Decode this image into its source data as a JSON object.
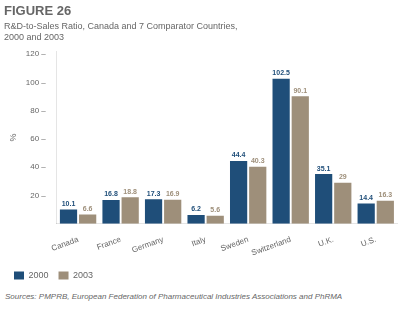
{
  "chart_data": {
    "type": "bar",
    "title": "FIGURE 26",
    "subtitle": "R&D-to-Sales Ratio, Canada and 7 Comparator Countries,\n2000 and 2003",
    "ylabel": "%",
    "annotations": [
      "Sources: PMPRB, European Federation of Pharmaceutical Industries Associations and PhRMA"
    ],
    "categories": [
      "Canada",
      "France",
      "Germany",
      "Italy",
      "Sweden",
      "Switzerland",
      "U.K.",
      "U.S."
    ],
    "series": [
      {
        "name": "2000",
        "color": "#1f4e79",
        "values": [
          10.1,
          16.8,
          17.3,
          6.2,
          44.4,
          102.5,
          35.1,
          14.4
        ]
      },
      {
        "name": "2003",
        "color": "#9e8f7a",
        "values": [
          6.6,
          18.8,
          16.9,
          5.6,
          40.3,
          90.1,
          29.0,
          16.3
        ]
      }
    ],
    "ylim": [
      0,
      122
    ],
    "yticks": [
      {
        "value": 20,
        "label": "20 –"
      },
      {
        "value": 40,
        "label": "40 –"
      },
      {
        "value": 60,
        "label": "60 –"
      },
      {
        "value": 80,
        "label": "80 –"
      },
      {
        "value": 100,
        "label": "100 –"
      },
      {
        "value": 120,
        "label": "120 –"
      }
    ],
    "grid": false,
    "legend": "lower left",
    "data_labels": true
  }
}
